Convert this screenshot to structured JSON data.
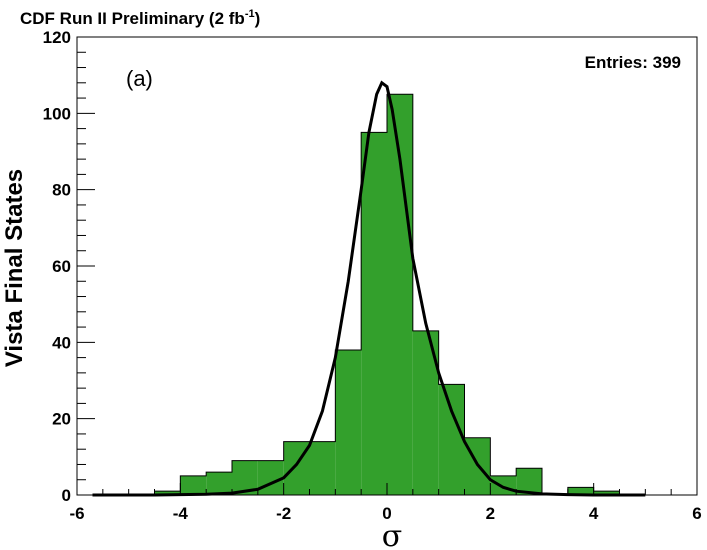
{
  "chart_data": {
    "type": "bar",
    "title": "CDF Run II Preliminary (2 fb",
    "title_superscript": "-1",
    "title_suffix": ")",
    "panel_label": "(a)",
    "stats_label": "Entries: 399",
    "xlabel": "σ",
    "ylabel": "Vista Final States",
    "xlim": [
      -6,
      6
    ],
    "ylim": [
      0,
      120
    ],
    "x_ticks": [
      "-6",
      "-4",
      "-2",
      "0",
      "2",
      "4",
      "6"
    ],
    "y_ticks": [
      "0",
      "20",
      "40",
      "60",
      "80",
      "100",
      "120"
    ],
    "bin_width": 0.5,
    "bins": [
      {
        "x0": -4.5,
        "value": 1
      },
      {
        "x0": -4.0,
        "value": 5
      },
      {
        "x0": -3.5,
        "value": 6
      },
      {
        "x0": -3.0,
        "value": 9
      },
      {
        "x0": -2.5,
        "value": 9
      },
      {
        "x0": -2.0,
        "value": 14
      },
      {
        "x0": -1.5,
        "value": 14
      },
      {
        "x0": -1.0,
        "value": 38
      },
      {
        "x0": -0.5,
        "value": 95
      },
      {
        "x0": 0.0,
        "value": 105
      },
      {
        "x0": 0.5,
        "value": 43
      },
      {
        "x0": 1.0,
        "value": 29
      },
      {
        "x0": 1.5,
        "value": 15
      },
      {
        "x0": 2.0,
        "value": 5
      },
      {
        "x0": 2.5,
        "value": 7
      },
      {
        "x0": 3.5,
        "value": 2
      },
      {
        "x0": 4.0,
        "value": 1
      }
    ],
    "curve": {
      "type": "line",
      "x": [
        -5.7,
        -4.5,
        -4.0,
        -3.5,
        -3.0,
        -2.5,
        -2.0,
        -1.75,
        -1.5,
        -1.25,
        -1.0,
        -0.75,
        -0.5,
        -0.35,
        -0.2,
        -0.1,
        0.0,
        0.1,
        0.25,
        0.5,
        0.75,
        1.0,
        1.25,
        1.5,
        1.75,
        2.0,
        2.25,
        2.5,
        3.0,
        3.5,
        4.0,
        5.0
      ],
      "y": [
        0,
        0,
        0.1,
        0.2,
        0.5,
        1.5,
        4.5,
        8,
        13,
        22,
        36,
        56,
        80,
        95,
        105,
        108,
        107,
        101,
        88,
        62,
        45,
        32,
        22,
        14,
        8,
        4,
        2,
        1,
        0.3,
        0.1,
        0,
        0
      ]
    },
    "bar_color": "#33a02c",
    "outline_color": "#000000",
    "grid": false,
    "legend": "none"
  }
}
